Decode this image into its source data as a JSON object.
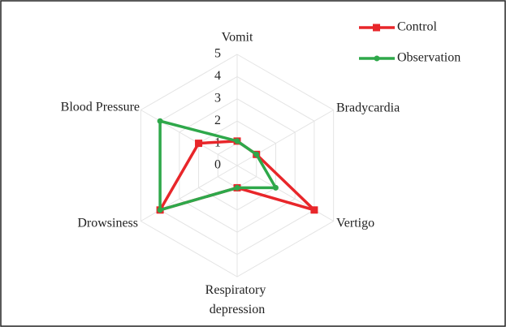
{
  "chart_data": {
    "type": "radar",
    "categories": [
      "Vomit",
      "Bradycardia",
      "Vertigo",
      "Respiratory depression",
      "Drowsiness",
      "Blood Pressure"
    ],
    "series": [
      {
        "name": "Control",
        "color": "#e8262a",
        "values": [
          1.1,
          1,
          4,
          1,
          4,
          2
        ]
      },
      {
        "name": "Observation",
        "color": "#2ea84a",
        "values": [
          1.1,
          1,
          2,
          1,
          4,
          4
        ]
      }
    ],
    "rlim": [
      0,
      5
    ],
    "rticks": [
      0,
      1,
      2,
      3,
      4,
      5
    ],
    "grid": true,
    "legend": "top-right"
  }
}
